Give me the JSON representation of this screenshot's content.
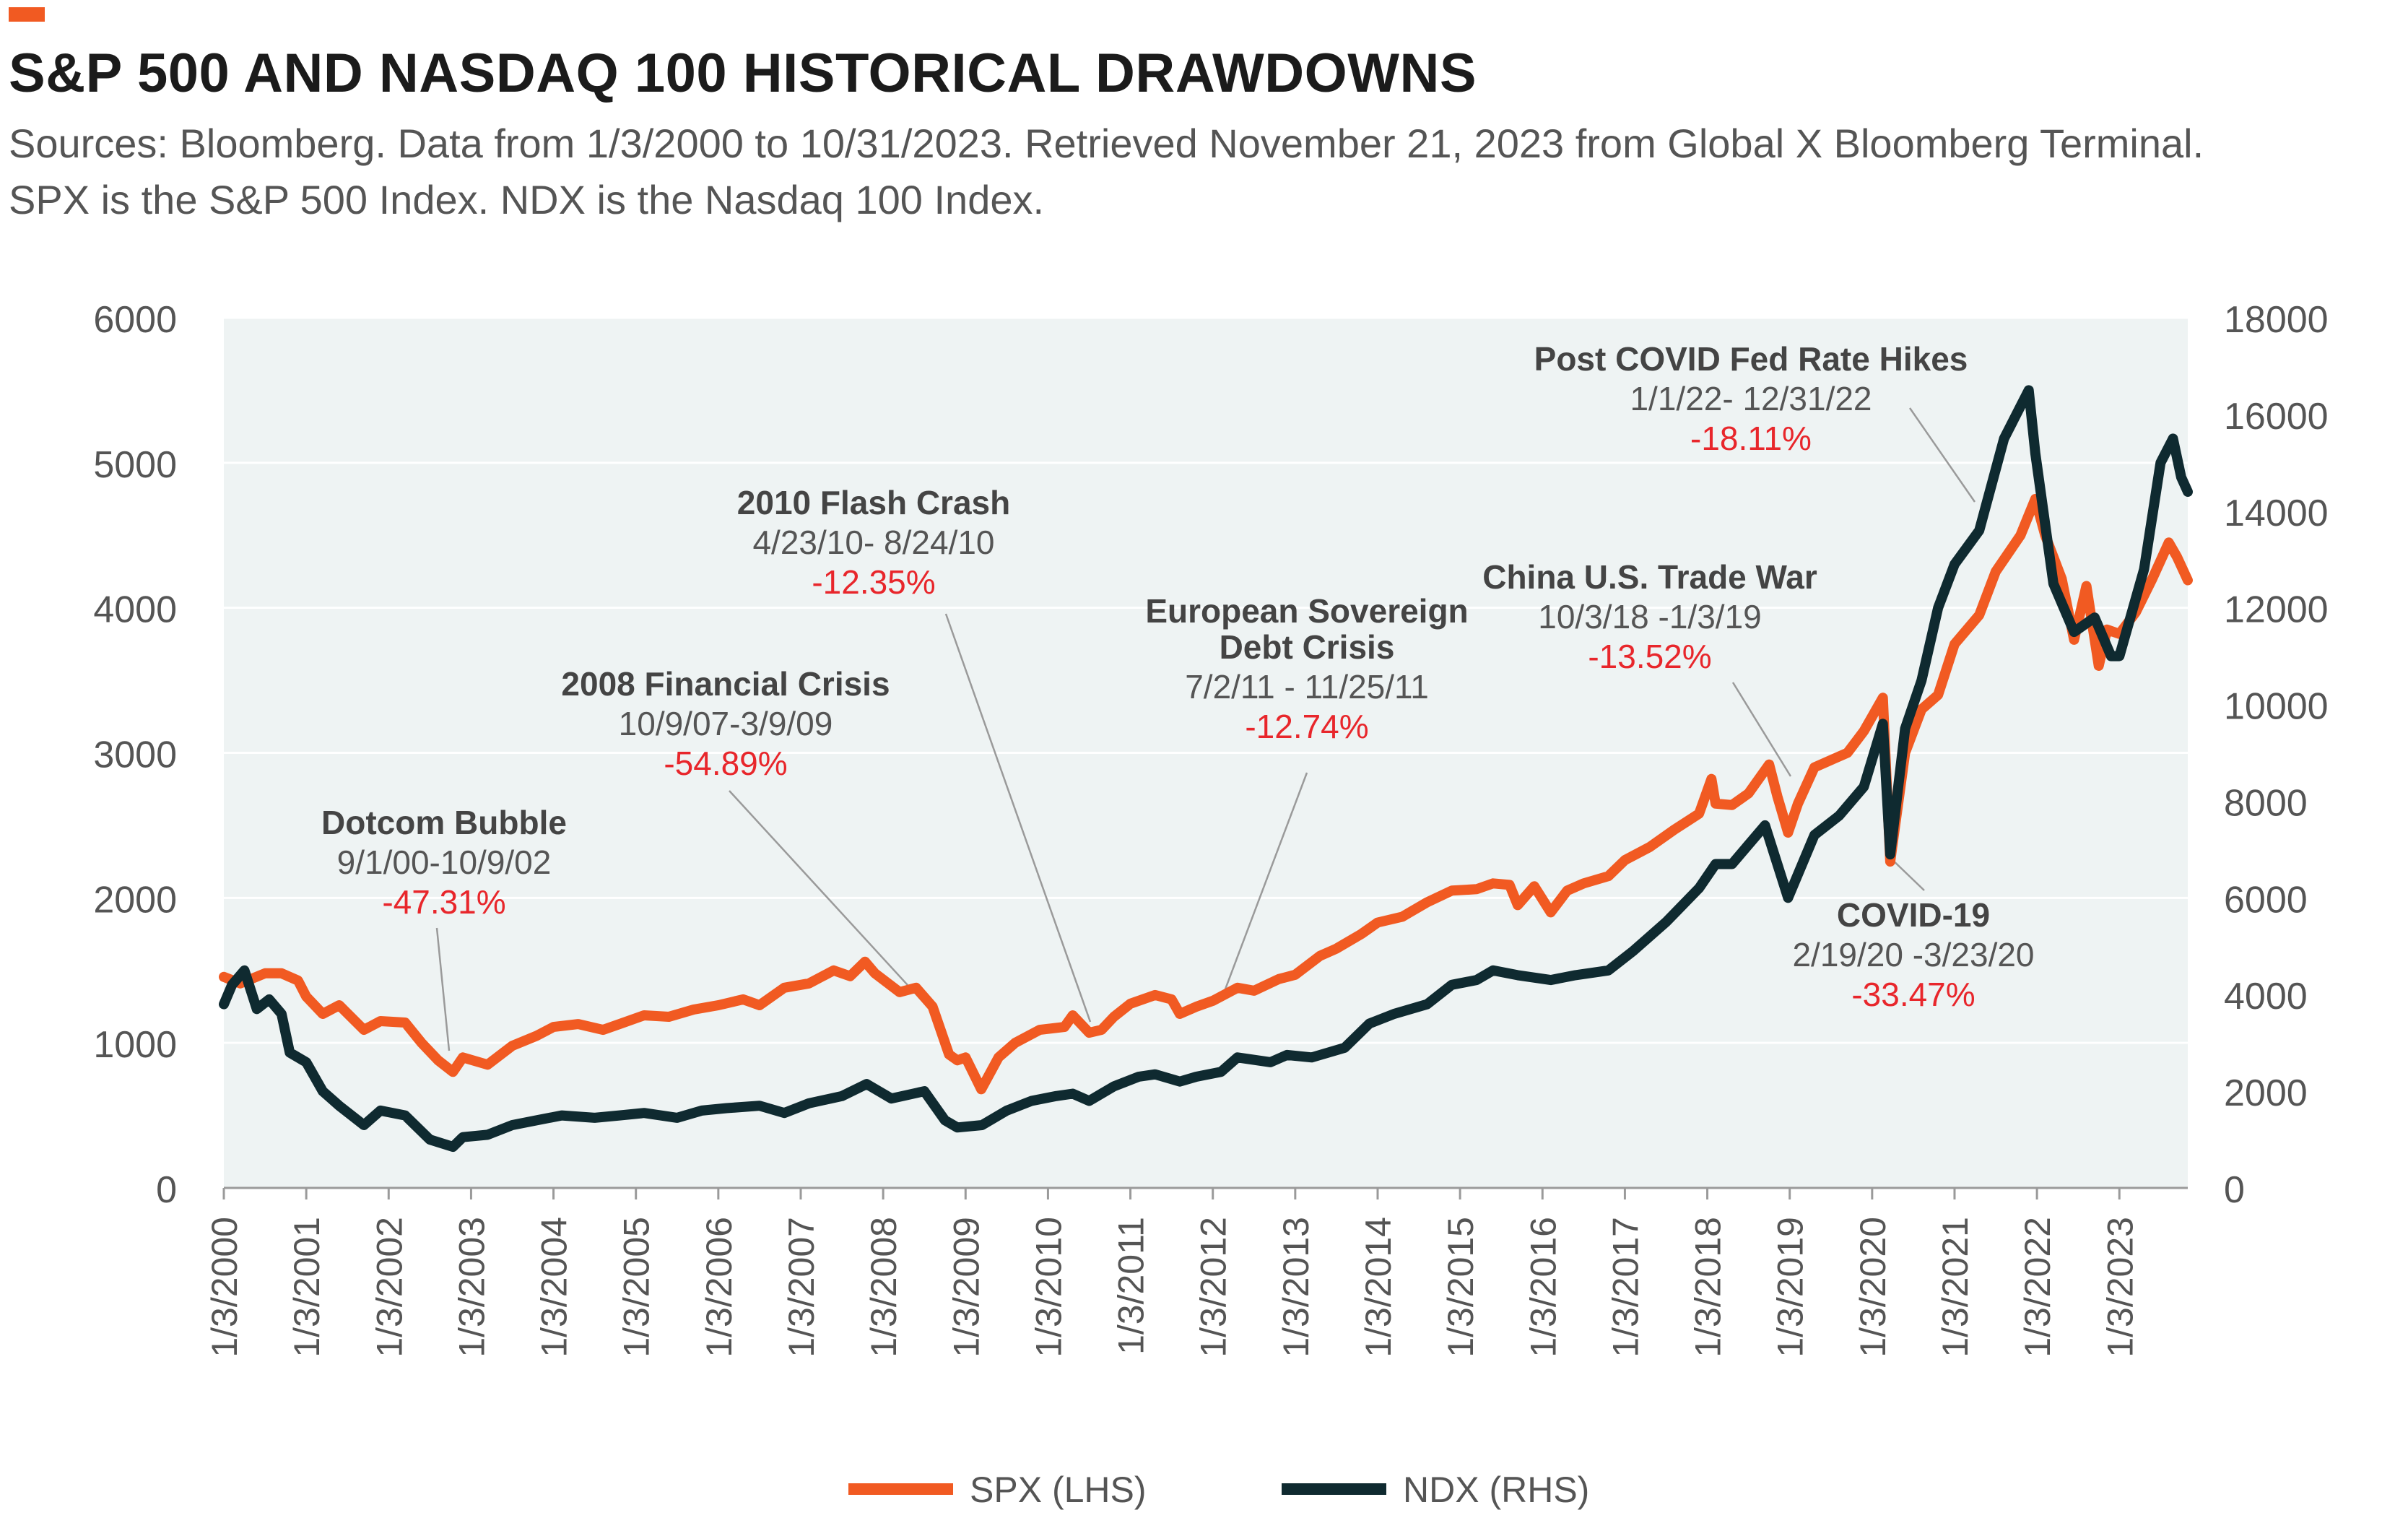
{
  "header": {
    "title": "S&P 500 AND NASDAQ 100 HISTORICAL DRAWDOWNS",
    "source_line1": "Sources: Bloomberg. Data from 1/3/2000 to 10/31/2023. Retrieved November 21, 2023 from Global X Bloomberg Terminal.",
    "source_line2": "SPX is the S&P 500 Index. NDX is the Nasdaq 100 Index."
  },
  "colors": {
    "spx": "#f15a22",
    "ndx": "#0f2a30",
    "plot_bg": "#eef3f3",
    "red": "#e8262b",
    "text": "#555555",
    "bold": "#444444",
    "accent": "#f15a22"
  },
  "chart_data": {
    "type": "line",
    "x_ticks": [
      "1/3/2000",
      "1/3/2001",
      "1/3/2002",
      "1/3/2003",
      "1/3/2004",
      "1/3/2005",
      "1/3/2006",
      "1/3/2007",
      "1/3/2008",
      "1/3/2009",
      "1/3/2010",
      "1/3/2011",
      "1/3/2012",
      "1/3/2013",
      "1/3/2014",
      "1/3/2015",
      "1/3/2016",
      "1/3/2017",
      "1/3/2018",
      "1/3/2019",
      "1/3/2020",
      "1/3/2021",
      "1/3/2022",
      "1/3/2023"
    ],
    "x_range": [
      "1/3/2000",
      "10/31/2023"
    ],
    "y_left": {
      "label": "",
      "range": [
        0,
        6000
      ],
      "ticks": [
        0,
        1000,
        2000,
        3000,
        4000,
        5000,
        6000
      ]
    },
    "y_right": {
      "label": "",
      "range": [
        0,
        18000
      ],
      "ticks": [
        0,
        2000,
        4000,
        6000,
        8000,
        10000,
        12000,
        14000,
        16000,
        18000
      ]
    },
    "grid": true,
    "legend_position": "bottom-center",
    "series": [
      {
        "name": "SPX (LHS)",
        "axis": "left",
        "x": [
          2000.0,
          2000.2,
          2000.5,
          2000.7,
          2000.9,
          2001.0,
          2001.2,
          2001.4,
          2001.7,
          2001.9,
          2002.2,
          2002.4,
          2002.6,
          2002.78,
          2002.9,
          2003.2,
          2003.5,
          2003.8,
          2004.0,
          2004.3,
          2004.6,
          2004.8,
          2005.1,
          2005.4,
          2005.7,
          2006.0,
          2006.3,
          2006.5,
          2006.8,
          2007.1,
          2007.4,
          2007.6,
          2007.78,
          2007.9,
          2008.2,
          2008.4,
          2008.6,
          2008.8,
          2008.9,
          2009.0,
          2009.19,
          2009.4,
          2009.6,
          2009.9,
          2010.2,
          2010.3,
          2010.5,
          2010.65,
          2010.8,
          2011.0,
          2011.3,
          2011.5,
          2011.6,
          2011.8,
          2012.0,
          2012.3,
          2012.5,
          2012.8,
          2013.0,
          2013.3,
          2013.5,
          2013.8,
          2014.0,
          2014.3,
          2014.6,
          2014.9,
          2015.2,
          2015.4,
          2015.6,
          2015.7,
          2015.9,
          2016.1,
          2016.3,
          2016.5,
          2016.8,
          2017.0,
          2017.3,
          2017.6,
          2017.9,
          2018.05,
          2018.1,
          2018.3,
          2018.5,
          2018.75,
          2018.85,
          2018.98,
          2019.1,
          2019.3,
          2019.5,
          2019.7,
          2019.9,
          2020.13,
          2020.22,
          2020.4,
          2020.6,
          2020.8,
          2021.0,
          2021.3,
          2021.5,
          2021.8,
          2021.98,
          2022.1,
          2022.3,
          2022.45,
          2022.6,
          2022.75,
          2022.85,
          2023.0,
          2023.2,
          2023.4,
          2023.6,
          2023.7,
          2023.83
        ],
        "y": [
          1455,
          1410,
          1480,
          1480,
          1430,
          1320,
          1200,
          1260,
          1090,
          1150,
          1140,
          1000,
          880,
          800,
          900,
          850,
          980,
          1050,
          1110,
          1130,
          1090,
          1130,
          1190,
          1180,
          1230,
          1260,
          1300,
          1260,
          1380,
          1410,
          1500,
          1460,
          1560,
          1480,
          1350,
          1380,
          1250,
          920,
          880,
          900,
          680,
          900,
          1000,
          1090,
          1110,
          1190,
          1070,
          1090,
          1180,
          1270,
          1330,
          1300,
          1200,
          1250,
          1290,
          1380,
          1360,
          1440,
          1470,
          1600,
          1650,
          1750,
          1830,
          1870,
          1970,
          2050,
          2060,
          2100,
          2090,
          1950,
          2080,
          1900,
          2050,
          2100,
          2150,
          2260,
          2350,
          2470,
          2580,
          2820,
          2650,
          2640,
          2720,
          2920,
          2700,
          2450,
          2650,
          2900,
          2950,
          3000,
          3150,
          3380,
          2250,
          3000,
          3300,
          3400,
          3750,
          3950,
          4250,
          4500,
          4750,
          4500,
          4200,
          3780,
          4150,
          3600,
          3850,
          3820,
          3970,
          4200,
          4450,
          4350,
          4190
        ]
      },
      {
        "name": "NDX (RHS)",
        "axis": "left_scale_right",
        "x": [
          2000.0,
          2000.1,
          2000.25,
          2000.4,
          2000.55,
          2000.7,
          2000.8,
          2001.0,
          2001.2,
          2001.4,
          2001.7,
          2001.9,
          2002.2,
          2002.5,
          2002.78,
          2002.9,
          2003.2,
          2003.5,
          2003.8,
          2004.1,
          2004.5,
          2004.8,
          2005.1,
          2005.5,
          2005.8,
          2006.1,
          2006.5,
          2006.8,
          2007.1,
          2007.5,
          2007.8,
          2008.1,
          2008.5,
          2008.75,
          2008.9,
          2009.2,
          2009.5,
          2009.8,
          2010.1,
          2010.3,
          2010.5,
          2010.8,
          2011.1,
          2011.3,
          2011.6,
          2011.8,
          2012.1,
          2012.3,
          2012.7,
          2012.9,
          2013.2,
          2013.6,
          2013.9,
          2014.2,
          2014.6,
          2014.9,
          2015.2,
          2015.4,
          2015.7,
          2016.1,
          2016.4,
          2016.8,
          2017.1,
          2017.5,
          2017.9,
          2018.1,
          2018.3,
          2018.7,
          2018.98,
          2019.3,
          2019.6,
          2019.9,
          2020.13,
          2020.22,
          2020.4,
          2020.6,
          2020.8,
          2021.0,
          2021.3,
          2021.6,
          2021.9,
          2021.98,
          2022.2,
          2022.45,
          2022.7,
          2022.9,
          2023.0,
          2023.3,
          2023.5,
          2023.65,
          2023.75,
          2023.83
        ],
        "y": [
          3800,
          4200,
          4500,
          3700,
          3900,
          3600,
          2800,
          2600,
          2000,
          1700,
          1300,
          1600,
          1500,
          1000,
          850,
          1050,
          1100,
          1300,
          1400,
          1500,
          1450,
          1500,
          1550,
          1450,
          1600,
          1650,
          1700,
          1550,
          1750,
          1900,
          2150,
          1850,
          2000,
          1400,
          1250,
          1300,
          1600,
          1800,
          1900,
          1950,
          1800,
          2100,
          2300,
          2350,
          2200,
          2300,
          2400,
          2700,
          2600,
          2750,
          2700,
          2900,
          3400,
          3600,
          3800,
          4200,
          4300,
          4500,
          4400,
          4300,
          4400,
          4500,
          4900,
          5500,
          6200,
          6700,
          6700,
          7500,
          6000,
          7300,
          7700,
          8300,
          9600,
          6900,
          9500,
          10500,
          12000,
          12900,
          13600,
          15500,
          16500,
          15200,
          12500,
          11500,
          11800,
          11000,
          11000,
          12800,
          15000,
          15500,
          14700,
          14400
        ]
      }
    ],
    "annotations": [
      {
        "title": "Dotcom Bubble",
        "dates": "9/1/00-10/9/02",
        "change": "-47.31%"
      },
      {
        "title": "2008 Financial Crisis",
        "dates": "10/9/07-3/9/09",
        "change": "-54.89%"
      },
      {
        "title": "2010 Flash Crash",
        "dates": "4/23/10- 8/24/10",
        "change": "-12.35%"
      },
      {
        "title": "European Sovereign",
        "title2": "Debt Crisis",
        "dates": "7/2/11 - 11/25/11",
        "change": "-12.74%"
      },
      {
        "title": "China U.S. Trade War",
        "dates": "10/3/18 -1/3/19",
        "change": "-13.52%"
      },
      {
        "title": "COVID-19",
        "dates": "2/19/20 -3/23/20",
        "change": "-33.47%"
      },
      {
        "title": "Post COVID Fed Rate Hikes",
        "dates": "1/1/22- 12/31/22",
        "change": "-18.11%"
      }
    ]
  }
}
